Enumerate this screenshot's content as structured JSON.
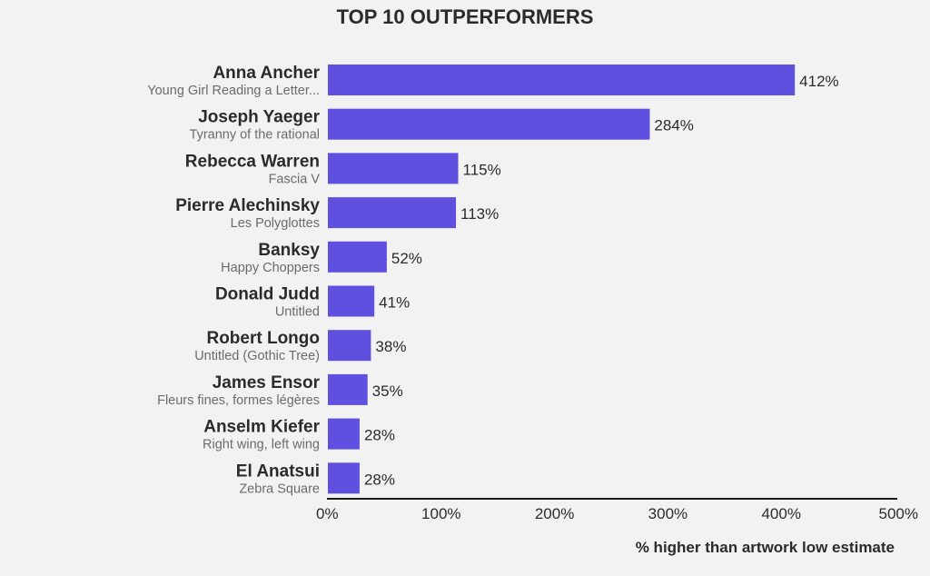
{
  "chart_data": {
    "type": "bar",
    "orientation": "horizontal",
    "title": "TOP 10 OUTPERFORMERS",
    "xlabel": "% higher than artwork low estimate",
    "ylabel": "",
    "xlim": [
      0,
      500
    ],
    "x_ticks": [
      0,
      100,
      200,
      300,
      400,
      500
    ],
    "x_tick_labels": [
      "0%",
      "100%",
      "200%",
      "300%",
      "400%",
      "500%"
    ],
    "grid": false,
    "legend": "none",
    "bar_color": "#5f50e0",
    "categories": [
      {
        "artist": "Anna Ancher",
        "artwork": "Young Girl Reading a Letter..."
      },
      {
        "artist": "Joseph Yaeger",
        "artwork": "Tyranny of the rational"
      },
      {
        "artist": "Rebecca Warren",
        "artwork": "Fascia V"
      },
      {
        "artist": "Pierre Alechinsky",
        "artwork": "Les Polyglottes"
      },
      {
        "artist": "Banksy",
        "artwork": "Happy Choppers"
      },
      {
        "artist": "Donald Judd",
        "artwork": "Untitled"
      },
      {
        "artist": "Robert Longo",
        "artwork": "Untitled (Gothic Tree)"
      },
      {
        "artist": "James Ensor",
        "artwork": "Fleurs fines, formes légères"
      },
      {
        "artist": "Anselm Kiefer",
        "artwork": "Right wing, left wing"
      },
      {
        "artist": "El Anatsui",
        "artwork": "Zebra Square"
      }
    ],
    "values": [
      412,
      284,
      115,
      113,
      52,
      41,
      38,
      35,
      28,
      28
    ],
    "value_labels": [
      "412%",
      "284%",
      "115%",
      "113%",
      "52%",
      "41%",
      "38%",
      "35%",
      "28%",
      "28%"
    ]
  }
}
